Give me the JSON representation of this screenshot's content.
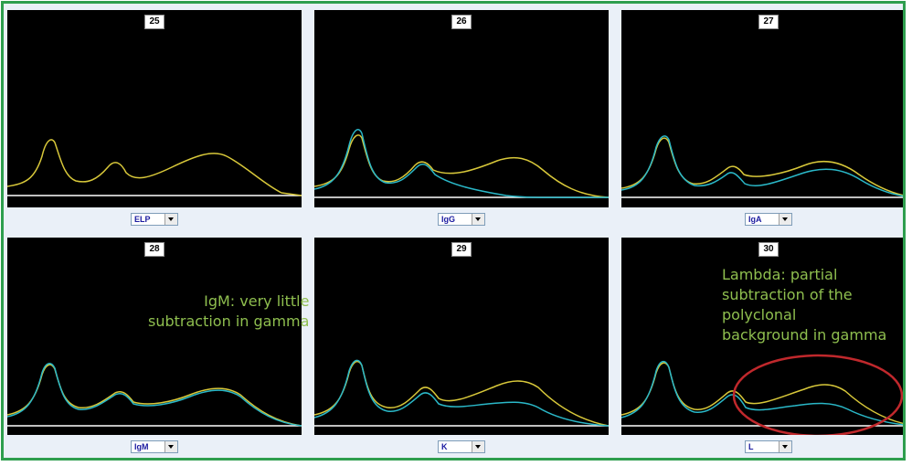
{
  "panels": [
    {
      "number": "25",
      "selector": "ELP",
      "overlay": false
    },
    {
      "number": "26",
      "selector": "IgG",
      "overlay": true
    },
    {
      "number": "27",
      "selector": "IgA",
      "overlay": true
    },
    {
      "number": "28",
      "selector": "IgM",
      "overlay": true
    },
    {
      "number": "29",
      "selector": "K",
      "overlay": true
    },
    {
      "number": "30",
      "selector": "L",
      "overlay": true
    }
  ],
  "annotations": {
    "igm": "IgM: very little\nsubtraction in gamma",
    "lambda_lines": [
      "Lambda: partial",
      "subtraction of the",
      "polyclonal",
      "background in gamma"
    ]
  },
  "colors": {
    "frame": "#2e9e4e",
    "trace_elp": "#d8c83a",
    "trace_subtracted": "#2ab8c8",
    "baseline": "#ffffff",
    "annotation_text": "#8fbf4f",
    "highlight_ellipse": "#c0282c"
  }
}
